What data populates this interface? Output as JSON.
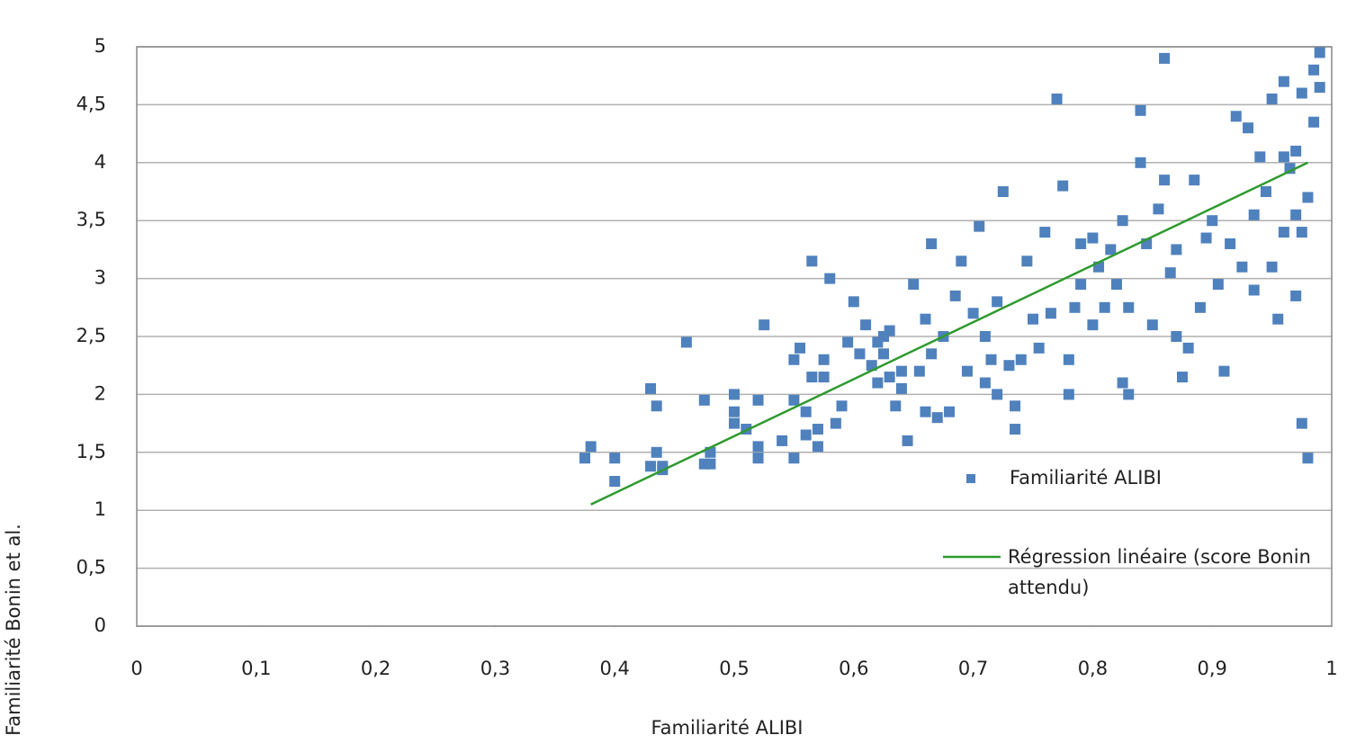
{
  "chart_data": {
    "type": "scatter",
    "xlabel": "Familiarité ALIBI",
    "ylabel": "Familiarité Bonin et al.",
    "xlim": [
      0,
      1
    ],
    "ylim": [
      0,
      5
    ],
    "xticks": [
      0,
      {
        "value": 0.1,
        "label": "0,1"
      },
      {
        "value": 0.2,
        "label": "0,2"
      },
      {
        "value": 0.3,
        "label": "0,3"
      },
      {
        "value": 0.4,
        "label": "0,4"
      },
      {
        "value": 0.5,
        "label": "0,5"
      },
      {
        "value": 0.6,
        "label": "0,6"
      },
      {
        "value": 0.7,
        "label": "0,7"
      },
      {
        "value": 0.8,
        "label": "0,8"
      },
      {
        "value": 0.9,
        "label": "0,9"
      },
      1
    ],
    "yticks": [
      0,
      {
        "value": 0.5,
        "label": "0,5"
      },
      1,
      {
        "value": 1.5,
        "label": "1,5"
      },
      2,
      {
        "value": 2.5,
        "label": "2,5"
      },
      3,
      {
        "value": 3.5,
        "label": "3,5"
      },
      4,
      {
        "value": 4.5,
        "label": "4,5"
      },
      5
    ],
    "grid": true,
    "legend": "lower right",
    "series": [
      {
        "name": "Familiarité ALIBI",
        "type": "scatter",
        "color": "#4f81bd",
        "x": [
          0.375,
          0.38,
          0.4,
          0.4,
          0.43,
          0.43,
          0.44,
          0.435,
          0.435,
          0.44,
          0.46,
          0.475,
          0.475,
          0.48,
          0.48,
          0.5,
          0.5,
          0.5,
          0.51,
          0.52,
          0.52,
          0.52,
          0.525,
          0.54,
          0.55,
          0.55,
          0.55,
          0.555,
          0.56,
          0.56,
          0.565,
          0.565,
          0.57,
          0.57,
          0.575,
          0.575,
          0.58,
          0.585,
          0.59,
          0.595,
          0.6,
          0.605,
          0.61,
          0.615,
          0.62,
          0.62,
          0.625,
          0.625,
          0.63,
          0.63,
          0.635,
          0.64,
          0.64,
          0.645,
          0.65,
          0.655,
          0.66,
          0.66,
          0.665,
          0.665,
          0.67,
          0.675,
          0.68,
          0.685,
          0.69,
          0.695,
          0.7,
          0.705,
          0.71,
          0.71,
          0.715,
          0.72,
          0.72,
          0.725,
          0.73,
          0.735,
          0.735,
          0.74,
          0.745,
          0.75,
          0.755,
          0.76,
          0.765,
          0.77,
          0.775,
          0.78,
          0.78,
          0.785,
          0.79,
          0.79,
          0.8,
          0.8,
          0.805,
          0.81,
          0.815,
          0.82,
          0.825,
          0.825,
          0.83,
          0.83,
          0.84,
          0.84,
          0.845,
          0.85,
          0.855,
          0.86,
          0.86,
          0.865,
          0.87,
          0.87,
          0.875,
          0.88,
          0.885,
          0.89,
          0.895,
          0.9,
          0.905,
          0.91,
          0.915,
          0.92,
          0.925,
          0.93,
          0.935,
          0.935,
          0.94,
          0.945,
          0.95,
          0.955,
          0.96,
          0.96,
          0.965,
          0.97,
          0.97,
          0.975,
          0.975,
          0.98,
          0.98,
          0.985,
          0.985,
          0.99,
          0.99,
          0.95,
          0.96,
          0.97,
          0.975
        ],
        "values": [
          1.45,
          1.55,
          1.45,
          1.25,
          1.38,
          2.05,
          1.38,
          1.5,
          1.9,
          1.35,
          2.45,
          1.95,
          1.4,
          1.5,
          1.4,
          2.0,
          1.85,
          1.75,
          1.7,
          1.55,
          1.45,
          1.95,
          2.6,
          1.6,
          1.95,
          1.45,
          2.3,
          2.4,
          1.65,
          1.85,
          2.15,
          3.15,
          1.55,
          1.7,
          2.15,
          2.3,
          3.0,
          1.75,
          1.9,
          2.45,
          2.8,
          2.35,
          2.6,
          2.25,
          2.1,
          2.45,
          2.35,
          2.5,
          2.55,
          2.15,
          1.9,
          2.2,
          2.05,
          1.6,
          2.95,
          2.2,
          1.85,
          2.65,
          3.3,
          2.35,
          1.8,
          2.5,
          1.85,
          2.85,
          3.15,
          2.2,
          2.7,
          3.45,
          2.5,
          2.1,
          2.3,
          2.0,
          2.8,
          3.75,
          2.25,
          1.9,
          1.7,
          2.3,
          3.15,
          2.65,
          2.4,
          3.4,
          2.7,
          4.55,
          3.8,
          2.3,
          2.0,
          2.75,
          3.3,
          2.95,
          3.35,
          2.6,
          3.1,
          2.75,
          3.25,
          2.95,
          3.5,
          2.1,
          2.0,
          2.75,
          4.0,
          4.45,
          3.3,
          2.6,
          3.6,
          3.85,
          4.9,
          3.05,
          2.5,
          3.25,
          2.15,
          2.4,
          3.85,
          2.75,
          3.35,
          3.5,
          2.95,
          2.2,
          3.3,
          4.4,
          3.1,
          4.3,
          2.9,
          3.55,
          4.05,
          3.75,
          3.1,
          2.65,
          4.05,
          3.4,
          3.95,
          3.55,
          4.1,
          3.4,
          4.6,
          3.7,
          1.45,
          4.35,
          4.8,
          4.65,
          4.95,
          4.55,
          4.7,
          2.85,
          1.75
        ]
      },
      {
        "name": "Régression linéaire (score Bonin attendu)",
        "type": "line",
        "color": "#2e9a2e",
        "x": [
          0.38,
          0.98
        ],
        "values": [
          1.05,
          4.0
        ]
      }
    ]
  }
}
